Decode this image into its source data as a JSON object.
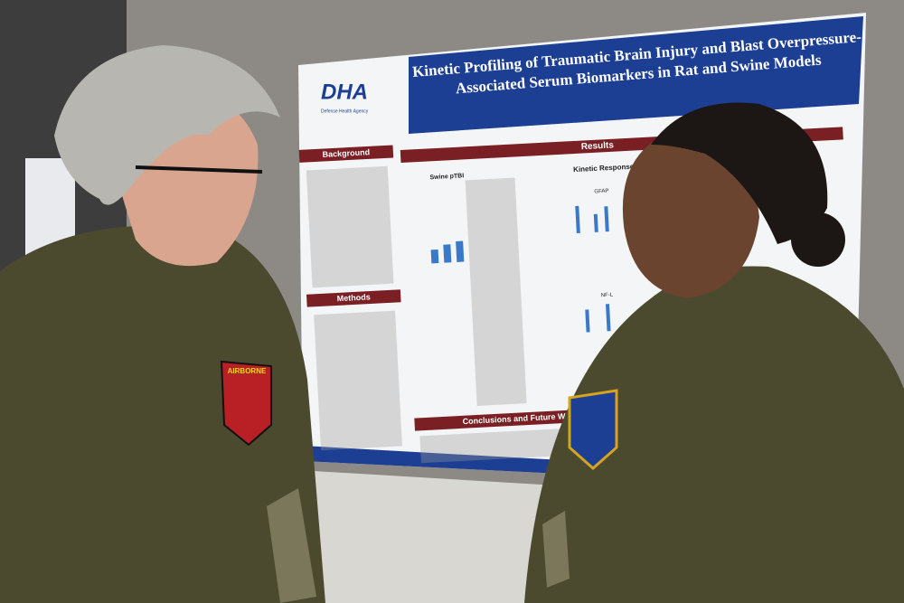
{
  "poster": {
    "title_lines": [
      "Kinetic Profiling of Traumatic Brain Injury and Blast Overpressure-",
      "Associated Serum Biomarkers in Rat and Swine Models"
    ],
    "logo": "DHA",
    "logo_subtitle": "Defense Health Agency",
    "sections": [
      "Background",
      "Methods",
      "Results",
      "Conclusions and Future Work"
    ],
    "results_heading": "Kinetic Response Pr",
    "swine_heading": "Swine pTBI",
    "chart_labels": [
      "GFAP",
      "NF-L"
    ]
  },
  "patch": {
    "text": "AIRBORNE"
  }
}
